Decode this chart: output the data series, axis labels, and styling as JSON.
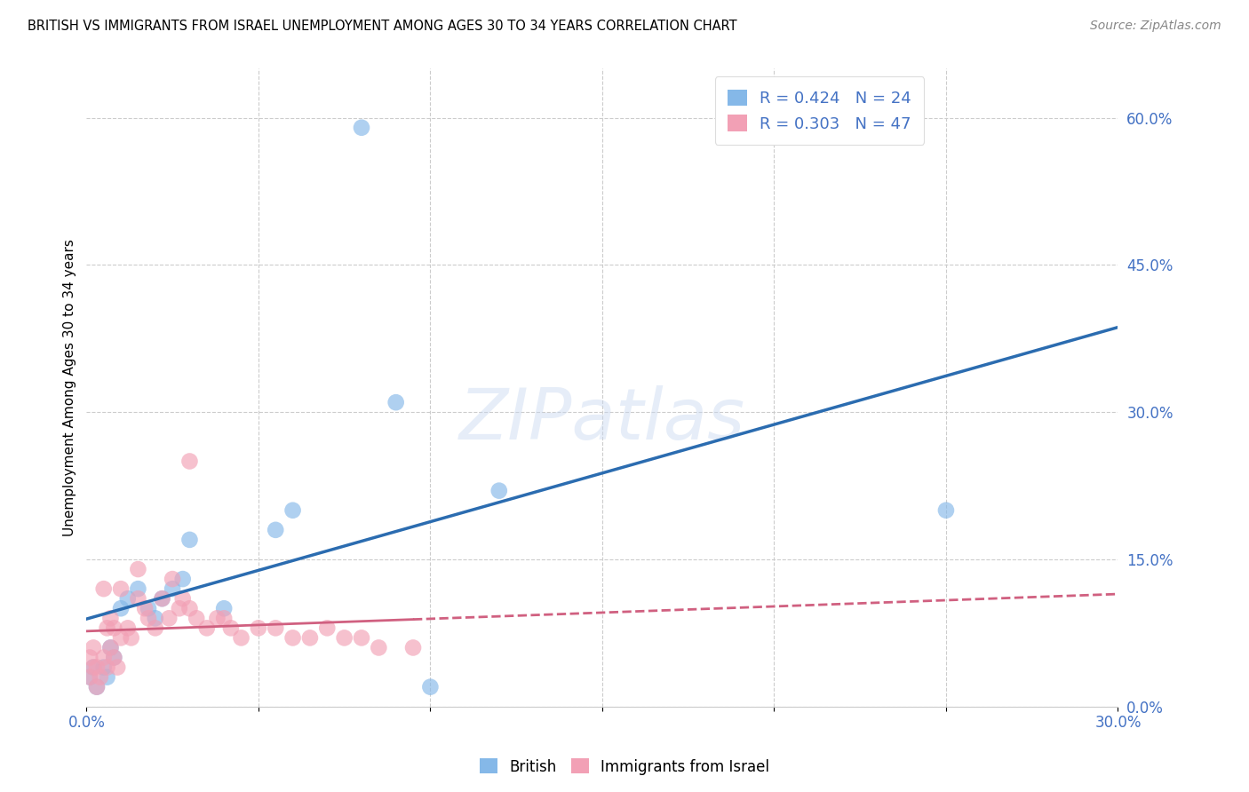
{
  "title": "BRITISH VS IMMIGRANTS FROM ISRAEL UNEMPLOYMENT AMONG AGES 30 TO 34 YEARS CORRELATION CHART",
  "source": "Source: ZipAtlas.com",
  "ylabel": "Unemployment Among Ages 30 to 34 years",
  "xlim": [
    0.0,
    0.3
  ],
  "ylim": [
    0.0,
    0.65
  ],
  "x_ticks": [
    0.0,
    0.05,
    0.1,
    0.15,
    0.2,
    0.25,
    0.3
  ],
  "x_tick_labels": [
    "0.0%",
    "",
    "",
    "",
    "",
    "",
    "30.0%"
  ],
  "y_ticks": [
    0.0,
    0.15,
    0.3,
    0.45,
    0.6
  ],
  "y_tick_labels_right": [
    "0.0%",
    "15.0%",
    "30.0%",
    "45.0%",
    "60.0%"
  ],
  "british_color": "#85B8E8",
  "israel_color": "#F2A0B5",
  "british_line_color": "#2B6CB0",
  "israel_line_color": "#D06080",
  "R_british": 0.424,
  "N_british": 24,
  "R_israel": 0.303,
  "N_israel": 47,
  "watermark": "ZIPatlas",
  "british_x": [
    0.001,
    0.002,
    0.003,
    0.005,
    0.006,
    0.007,
    0.008,
    0.01,
    0.012,
    0.015,
    0.018,
    0.02,
    0.022,
    0.025,
    0.028,
    0.03,
    0.04,
    0.055,
    0.06,
    0.08,
    0.09,
    0.1,
    0.12,
    0.25
  ],
  "british_y": [
    0.03,
    0.04,
    0.02,
    0.04,
    0.03,
    0.06,
    0.05,
    0.1,
    0.11,
    0.12,
    0.1,
    0.09,
    0.11,
    0.12,
    0.13,
    0.17,
    0.1,
    0.18,
    0.2,
    0.59,
    0.31,
    0.02,
    0.22,
    0.2
  ],
  "israel_x": [
    0.001,
    0.001,
    0.002,
    0.002,
    0.003,
    0.003,
    0.004,
    0.005,
    0.005,
    0.006,
    0.006,
    0.007,
    0.007,
    0.008,
    0.008,
    0.009,
    0.01,
    0.01,
    0.012,
    0.013,
    0.015,
    0.015,
    0.017,
    0.018,
    0.02,
    0.022,
    0.024,
    0.025,
    0.027,
    0.028,
    0.03,
    0.032,
    0.035,
    0.038,
    0.04,
    0.042,
    0.045,
    0.05,
    0.055,
    0.06,
    0.065,
    0.07,
    0.075,
    0.08,
    0.085,
    0.095,
    0.03
  ],
  "israel_y": [
    0.03,
    0.05,
    0.04,
    0.06,
    0.02,
    0.04,
    0.03,
    0.05,
    0.12,
    0.04,
    0.08,
    0.06,
    0.09,
    0.05,
    0.08,
    0.04,
    0.07,
    0.12,
    0.08,
    0.07,
    0.11,
    0.14,
    0.1,
    0.09,
    0.08,
    0.11,
    0.09,
    0.13,
    0.1,
    0.11,
    0.25,
    0.09,
    0.08,
    0.09,
    0.09,
    0.08,
    0.07,
    0.08,
    0.08,
    0.07,
    0.07,
    0.08,
    0.07,
    0.07,
    0.06,
    0.06,
    0.1
  ]
}
